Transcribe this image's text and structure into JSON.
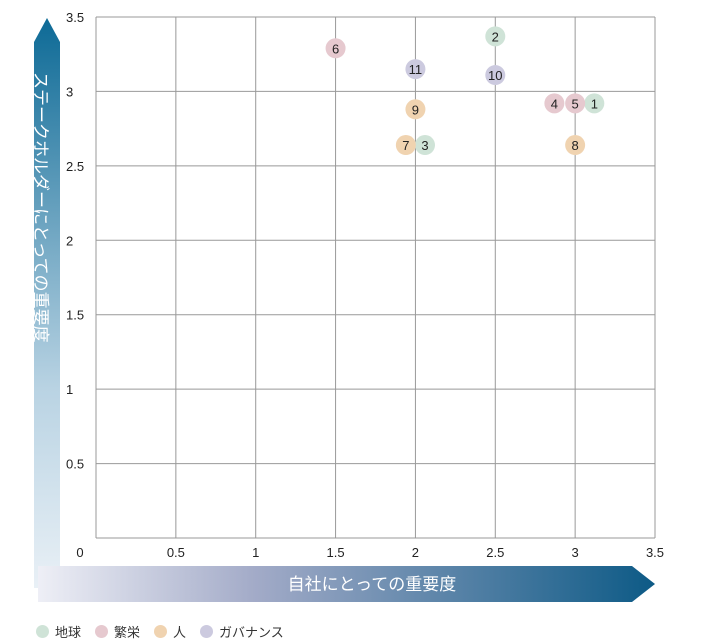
{
  "chart_data": {
    "type": "scatter",
    "xlabel": "自社にとっての重要度",
    "ylabel": "ステークホルダーにとっての重要度",
    "xlim": [
      0,
      3.5
    ],
    "ylim": [
      0,
      3.5
    ],
    "x_ticks": [
      "0",
      "0.5",
      "1",
      "1.5",
      "2",
      "2.5",
      "3",
      "3.5"
    ],
    "y_ticks": [
      "0.5",
      "1",
      "1.5",
      "2",
      "2.5",
      "3",
      "3.5"
    ],
    "grid": true,
    "legend_position": "bottom-left",
    "categories": [
      {
        "name": "地球",
        "color": "#cfe3d7"
      },
      {
        "name": "繁栄",
        "color": "#e6c9cf"
      },
      {
        "name": "人",
        "color": "#f0d3b0"
      },
      {
        "name": "ガバナンス",
        "color": "#cccadf"
      }
    ],
    "points": [
      {
        "label": "1",
        "x": 3.12,
        "y": 2.92,
        "category": 0
      },
      {
        "label": "2",
        "x": 2.5,
        "y": 3.37,
        "category": 0
      },
      {
        "label": "3",
        "x": 2.06,
        "y": 2.64,
        "category": 0
      },
      {
        "label": "4",
        "x": 2.87,
        "y": 2.92,
        "category": 1
      },
      {
        "label": "5",
        "x": 3.0,
        "y": 2.92,
        "category": 1
      },
      {
        "label": "6",
        "x": 1.5,
        "y": 3.29,
        "category": 1
      },
      {
        "label": "7",
        "x": 1.94,
        "y": 2.64,
        "category": 2
      },
      {
        "label": "8",
        "x": 3.0,
        "y": 2.64,
        "category": 2
      },
      {
        "label": "9",
        "x": 2.0,
        "y": 2.88,
        "category": 2
      },
      {
        "label": "10",
        "x": 2.5,
        "y": 3.11,
        "category": 3
      },
      {
        "label": "11",
        "x": 2.0,
        "y": 3.15,
        "category": 3
      }
    ]
  },
  "colors": {
    "arrow_dark": "#0d5a86",
    "arrow_light": "#e4edf4",
    "grid": "#999999"
  }
}
